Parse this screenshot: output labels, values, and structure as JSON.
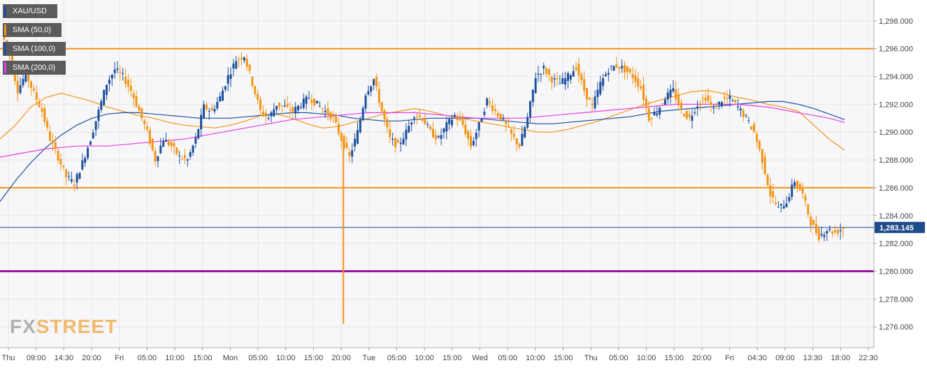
{
  "symbol": "XAU/USD",
  "logo": {
    "part1": "FX",
    "part2": "STREET"
  },
  "price_tag": "1,283.145",
  "colors": {
    "bull": "#1c4f9c",
    "bear": "#f29415",
    "sma50": "#f29415",
    "sma100": "#1c4f9c",
    "sma200": "#e83be8",
    "hline_orange": "#f29415",
    "hline_purple": "#9a14a8",
    "price_line": "#1c4f9c",
    "grid": "#e6e6e6",
    "background": "#f7f7f9"
  },
  "legend": [
    {
      "label": "SMA (50,0)",
      "color": "#f29415"
    },
    {
      "label": "SMA (100,0)",
      "color": "#1c4f9c"
    },
    {
      "label": "SMA (200,0)",
      "color": "#e83be8"
    }
  ],
  "chart_data": {
    "type": "candlestick",
    "title": "XAU/USD",
    "x_tick_labels": [
      "Thu",
      "09:00",
      "14:30",
      "20:00",
      "Fri",
      "05:00",
      "10:00",
      "15:00",
      "Mon",
      "05:00",
      "10:00",
      "15:00",
      "20:00",
      "Tue",
      "05:00",
      "10:00",
      "15:00",
      "Wed",
      "05:00",
      "10:00",
      "15:00",
      "Thu",
      "05:00",
      "10:00",
      "15:00",
      "20:00",
      "Fri",
      "04:30",
      "09:00",
      "13:30",
      "18:00",
      "22:30"
    ],
    "y_tick_labels": [
      "1,276.000",
      "1,278.000",
      "1,280.000",
      "1,282.000",
      "1,284.000",
      "1,286.000",
      "1,288.000",
      "1,290.000",
      "1,292.000",
      "1,294.000",
      "1,296.000",
      "1,298.000"
    ],
    "ylim": [
      1274.5,
      1299.5
    ],
    "grid": true,
    "horizontal_lines": [
      {
        "value": 1296.0,
        "color": "orange"
      },
      {
        "value": 1286.0,
        "color": "orange"
      },
      {
        "value": 1280.0,
        "color": "purple"
      }
    ],
    "last_price": 1283.145,
    "price_path": [
      1297.2,
      1295.5,
      1293.0,
      1294.2,
      1292.8,
      1291.5,
      1289.5,
      1288.2,
      1286.8,
      1286.3,
      1287.8,
      1289.5,
      1291.5,
      1293.5,
      1294.5,
      1294.0,
      1293.0,
      1291.5,
      1290.0,
      1288.0,
      1289.5,
      1289.0,
      1288.2,
      1288.0,
      1289.5,
      1291.8,
      1291.5,
      1292.5,
      1294.0,
      1295.2,
      1295.5,
      1293.5,
      1291.5,
      1291.0,
      1292.0,
      1291.8,
      1291.5,
      1292.0,
      1292.5,
      1292.0,
      1291.5,
      1291.0,
      1289.5,
      1288.2,
      1290.0,
      1292.8,
      1293.8,
      1291.5,
      1289.5,
      1289.0,
      1290.0,
      1291.3,
      1291.0,
      1290.0,
      1289.5,
      1290.5,
      1291.2,
      1290.5,
      1289.0,
      1290.5,
      1292.3,
      1291.5,
      1290.8,
      1289.8,
      1289.0,
      1291.0,
      1294.0,
      1294.6,
      1293.8,
      1293.5,
      1294.0,
      1294.7,
      1293.0,
      1291.8,
      1293.5,
      1294.5,
      1294.8,
      1294.5,
      1294.0,
      1293.2,
      1291.0,
      1291.5,
      1292.5,
      1293.0,
      1291.5,
      1291.0,
      1292.0,
      1292.5,
      1291.6,
      1292.3,
      1292.4,
      1291.8,
      1291.0,
      1290.0,
      1288.0,
      1285.5,
      1284.5,
      1285.0,
      1286.5,
      1285.5,
      1283.5,
      1282.5,
      1283.0,
      1282.8,
      1283.1
    ],
    "series": [
      {
        "name": "SMA (50,0)",
        "values": [
          1289.5,
          1290.5,
          1291.8,
          1292.5,
          1292.8,
          1292.5,
          1292.2,
          1291.8,
          1291.5,
          1291.2,
          1291.0,
          1290.7,
          1290.5,
          1290.4,
          1290.3,
          1290.5,
          1290.8,
          1291.2,
          1291.3,
          1291.0,
          1290.6,
          1290.3,
          1290.4,
          1290.7,
          1291.0,
          1291.3,
          1291.5,
          1291.7,
          1291.5,
          1291.2,
          1291.0,
          1290.8,
          1290.6,
          1290.4,
          1290.2,
          1290.0,
          1290.0,
          1290.2,
          1290.5,
          1290.8,
          1291.2,
          1291.6,
          1292.0,
          1292.3,
          1292.6,
          1292.9,
          1293.0,
          1292.8,
          1292.5,
          1292.3,
          1292.0,
          1291.8,
          1291.5,
          1290.5,
          1289.5,
          1288.7
        ]
      },
      {
        "name": "SMA (100,0)",
        "values": [
          1285.0,
          1286.5,
          1287.8,
          1288.9,
          1289.8,
          1290.5,
          1291.0,
          1291.3,
          1291.4,
          1291.4,
          1291.3,
          1291.2,
          1291.1,
          1291.0,
          1291.0,
          1291.0,
          1291.1,
          1291.2,
          1291.3,
          1291.4,
          1291.4,
          1291.3,
          1291.2,
          1291.0,
          1290.9,
          1290.8,
          1290.8,
          1290.9,
          1291.0,
          1291.0,
          1291.0,
          1291.0,
          1290.9,
          1290.8,
          1290.7,
          1290.6,
          1290.6,
          1290.7,
          1290.8,
          1290.9,
          1291.0,
          1291.1,
          1291.3,
          1291.5,
          1291.6,
          1291.7,
          1291.8,
          1291.9,
          1292.0,
          1292.1,
          1292.2,
          1292.2,
          1292.0,
          1291.7,
          1291.3,
          1290.9
        ]
      },
      {
        "name": "SMA (200,0)",
        "values": [
          1288.2,
          1288.4,
          1288.6,
          1288.8,
          1288.9,
          1289.0,
          1289.0,
          1289.0,
          1289.1,
          1289.2,
          1289.3,
          1289.4,
          1289.5,
          1289.7,
          1289.9,
          1290.1,
          1290.3,
          1290.5,
          1290.7,
          1290.9,
          1291.0,
          1291.1,
          1291.2,
          1291.3,
          1291.4,
          1291.4,
          1291.4,
          1291.4,
          1291.3,
          1291.2,
          1291.1,
          1291.0,
          1291.0,
          1291.0,
          1291.0,
          1291.1,
          1291.2,
          1291.3,
          1291.4,
          1291.5,
          1291.6,
          1291.7,
          1291.8,
          1291.9,
          1292.0,
          1292.0,
          1292.0,
          1292.0,
          1292.0,
          1291.9,
          1291.8,
          1291.6,
          1291.4,
          1291.2,
          1291.0,
          1290.7
        ]
      }
    ]
  }
}
